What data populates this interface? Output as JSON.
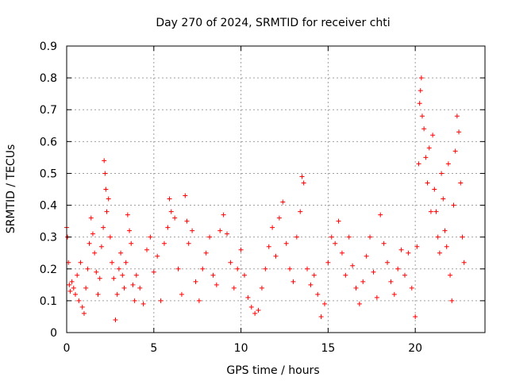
{
  "chart_data": {
    "type": "scatter",
    "title": "Day 270 of 2024, SRMTID for receiver chti",
    "xlabel": "GPS time / hours",
    "ylabel": "SRMTID / TECUs",
    "xlim": [
      0,
      24
    ],
    "ylim": [
      0,
      0.9
    ],
    "xticks": [
      0,
      5,
      10,
      15,
      20
    ],
    "yticks": [
      0,
      0.1,
      0.2,
      0.3,
      0.4,
      0.5,
      0.6,
      0.7,
      0.8,
      0.9
    ],
    "xtick_labels": [
      "0",
      "5",
      "10",
      "15",
      "20"
    ],
    "ytick_labels": [
      "0",
      "0.1",
      "0.2",
      "0.3",
      "0.4",
      "0.5",
      "0.6",
      "0.7",
      "0.8",
      "0.9"
    ],
    "grid": true,
    "marker": "+",
    "color": "#ff0000",
    "series": [
      {
        "name": "SRMTID",
        "points": [
          [
            0.0,
            0.33
          ],
          [
            0.05,
            0.3
          ],
          [
            0.1,
            0.22
          ],
          [
            0.15,
            0.15
          ],
          [
            0.2,
            0.13
          ],
          [
            0.3,
            0.16
          ],
          [
            0.4,
            0.14
          ],
          [
            0.5,
            0.12
          ],
          [
            0.6,
            0.18
          ],
          [
            0.7,
            0.1
          ],
          [
            0.8,
            0.22
          ],
          [
            0.9,
            0.08
          ],
          [
            1.0,
            0.06
          ],
          [
            1.1,
            0.14
          ],
          [
            1.2,
            0.2
          ],
          [
            1.3,
            0.28
          ],
          [
            1.4,
            0.36
          ],
          [
            1.5,
            0.31
          ],
          [
            1.6,
            0.25
          ],
          [
            1.7,
            0.19
          ],
          [
            1.8,
            0.12
          ],
          [
            1.9,
            0.17
          ],
          [
            2.0,
            0.27
          ],
          [
            2.1,
            0.33
          ],
          [
            2.15,
            0.54
          ],
          [
            2.2,
            0.5
          ],
          [
            2.25,
            0.45
          ],
          [
            2.3,
            0.38
          ],
          [
            2.4,
            0.42
          ],
          [
            2.5,
            0.3
          ],
          [
            2.6,
            0.22
          ],
          [
            2.7,
            0.17
          ],
          [
            2.8,
            0.04
          ],
          [
            2.9,
            0.12
          ],
          [
            3.0,
            0.2
          ],
          [
            3.1,
            0.25
          ],
          [
            3.2,
            0.18
          ],
          [
            3.3,
            0.14
          ],
          [
            3.4,
            0.22
          ],
          [
            3.5,
            0.37
          ],
          [
            3.6,
            0.32
          ],
          [
            3.7,
            0.28
          ],
          [
            3.8,
            0.15
          ],
          [
            3.9,
            0.1
          ],
          [
            4.0,
            0.18
          ],
          [
            4.2,
            0.14
          ],
          [
            4.4,
            0.09
          ],
          [
            4.6,
            0.26
          ],
          [
            4.8,
            0.3
          ],
          [
            5.0,
            0.19
          ],
          [
            5.2,
            0.24
          ],
          [
            5.4,
            0.1
          ],
          [
            5.6,
            0.28
          ],
          [
            5.8,
            0.33
          ],
          [
            5.9,
            0.42
          ],
          [
            6.0,
            0.38
          ],
          [
            6.2,
            0.36
          ],
          [
            6.4,
            0.2
          ],
          [
            6.6,
            0.12
          ],
          [
            6.8,
            0.43
          ],
          [
            6.9,
            0.35
          ],
          [
            7.0,
            0.28
          ],
          [
            7.2,
            0.32
          ],
          [
            7.4,
            0.16
          ],
          [
            7.6,
            0.1
          ],
          [
            7.8,
            0.2
          ],
          [
            8.0,
            0.25
          ],
          [
            8.2,
            0.3
          ],
          [
            8.4,
            0.18
          ],
          [
            8.6,
            0.15
          ],
          [
            8.8,
            0.32
          ],
          [
            9.0,
            0.37
          ],
          [
            9.2,
            0.31
          ],
          [
            9.4,
            0.22
          ],
          [
            9.6,
            0.14
          ],
          [
            9.8,
            0.2
          ],
          [
            10.0,
            0.26
          ],
          [
            10.2,
            0.18
          ],
          [
            10.4,
            0.11
          ],
          [
            10.6,
            0.08
          ],
          [
            10.8,
            0.06
          ],
          [
            11.0,
            0.07
          ],
          [
            11.2,
            0.14
          ],
          [
            11.4,
            0.2
          ],
          [
            11.6,
            0.27
          ],
          [
            11.8,
            0.33
          ],
          [
            12.0,
            0.24
          ],
          [
            12.2,
            0.36
          ],
          [
            12.4,
            0.41
          ],
          [
            12.6,
            0.28
          ],
          [
            12.8,
            0.2
          ],
          [
            13.0,
            0.16
          ],
          [
            13.2,
            0.3
          ],
          [
            13.4,
            0.38
          ],
          [
            13.5,
            0.49
          ],
          [
            13.6,
            0.47
          ],
          [
            13.8,
            0.2
          ],
          [
            14.0,
            0.15
          ],
          [
            14.2,
            0.18
          ],
          [
            14.4,
            0.12
          ],
          [
            14.6,
            0.05
          ],
          [
            14.8,
            0.09
          ],
          [
            15.0,
            0.22
          ],
          [
            15.2,
            0.3
          ],
          [
            15.4,
            0.28
          ],
          [
            15.6,
            0.35
          ],
          [
            15.8,
            0.25
          ],
          [
            16.0,
            0.18
          ],
          [
            16.2,
            0.3
          ],
          [
            16.4,
            0.21
          ],
          [
            16.6,
            0.14
          ],
          [
            16.8,
            0.09
          ],
          [
            17.0,
            0.16
          ],
          [
            17.2,
            0.24
          ],
          [
            17.4,
            0.3
          ],
          [
            17.6,
            0.19
          ],
          [
            17.8,
            0.11
          ],
          [
            18.0,
            0.37
          ],
          [
            18.2,
            0.28
          ],
          [
            18.4,
            0.22
          ],
          [
            18.6,
            0.16
          ],
          [
            18.8,
            0.12
          ],
          [
            19.0,
            0.2
          ],
          [
            19.2,
            0.26
          ],
          [
            19.4,
            0.18
          ],
          [
            19.6,
            0.25
          ],
          [
            19.8,
            0.14
          ],
          [
            20.0,
            0.05
          ],
          [
            20.1,
            0.27
          ],
          [
            20.2,
            0.53
          ],
          [
            20.25,
            0.72
          ],
          [
            20.3,
            0.76
          ],
          [
            20.35,
            0.8
          ],
          [
            20.4,
            0.68
          ],
          [
            20.5,
            0.64
          ],
          [
            20.6,
            0.55
          ],
          [
            20.7,
            0.47
          ],
          [
            20.8,
            0.58
          ],
          [
            20.9,
            0.38
          ],
          [
            21.0,
            0.62
          ],
          [
            21.1,
            0.45
          ],
          [
            21.2,
            0.38
          ],
          [
            21.3,
            0.3
          ],
          [
            21.4,
            0.25
          ],
          [
            21.5,
            0.5
          ],
          [
            21.6,
            0.42
          ],
          [
            21.7,
            0.32
          ],
          [
            21.8,
            0.27
          ],
          [
            21.9,
            0.53
          ],
          [
            22.0,
            0.18
          ],
          [
            22.1,
            0.1
          ],
          [
            22.2,
            0.4
          ],
          [
            22.3,
            0.57
          ],
          [
            22.4,
            0.68
          ],
          [
            22.5,
            0.63
          ],
          [
            22.6,
            0.47
          ],
          [
            22.7,
            0.3
          ],
          [
            22.8,
            0.22
          ]
        ]
      }
    ]
  }
}
